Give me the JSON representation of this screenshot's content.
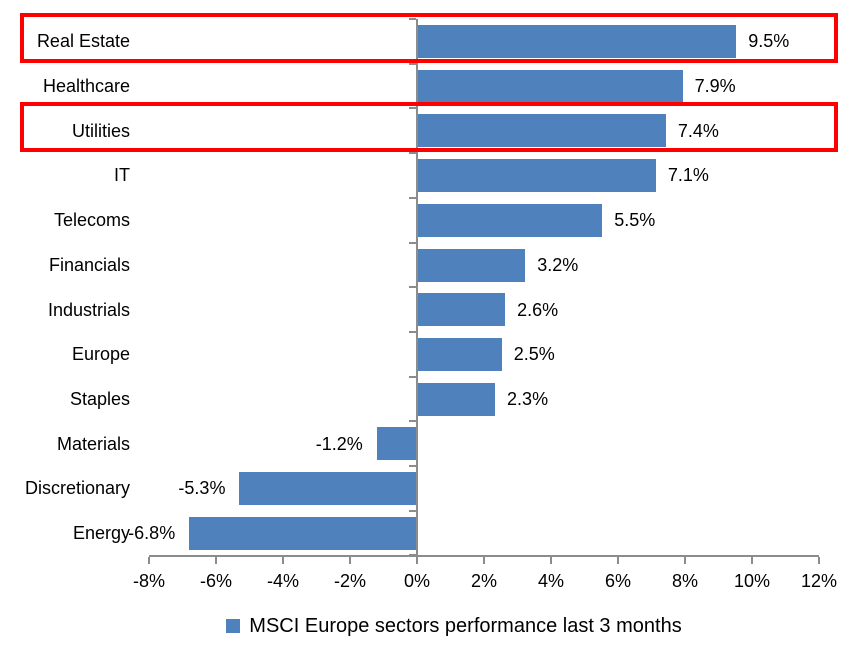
{
  "chart_data": {
    "type": "bar",
    "orientation": "horizontal",
    "categories": [
      "Real Estate",
      "Healthcare",
      "Utilities",
      "IT",
      "Telecoms",
      "Financials",
      "Industrials",
      "Europe",
      "Staples",
      "Materials",
      "Discretionary",
      "Energy"
    ],
    "values": [
      9.5,
      7.9,
      7.4,
      7.1,
      5.5,
      3.2,
      2.6,
      2.5,
      2.3,
      -1.2,
      -5.3,
      -6.8
    ],
    "data_labels": [
      "9.5%",
      "7.9%",
      "7.4%",
      "7.1%",
      "5.5%",
      "3.2%",
      "2.6%",
      "2.5%",
      "2.3%",
      "-1.2%",
      "-5.3%",
      "-6.8%"
    ],
    "x_axis": {
      "min": -8,
      "max": 12,
      "step": 2,
      "ticks": [
        "-8%",
        "-6%",
        "-4%",
        "-2%",
        "0%",
        "2%",
        "4%",
        "6%",
        "8%",
        "10%",
        "12%"
      ]
    },
    "legend": {
      "label": "MSCI Europe sectors performance last 3 months",
      "position": "bottom"
    },
    "highlighted_categories": [
      "Real Estate",
      "Utilities"
    ],
    "grid": false,
    "colors": {
      "bar": "#4F81BD",
      "axis": "#8C8C8C",
      "highlight": "#FF0000",
      "text": "#000000"
    }
  }
}
